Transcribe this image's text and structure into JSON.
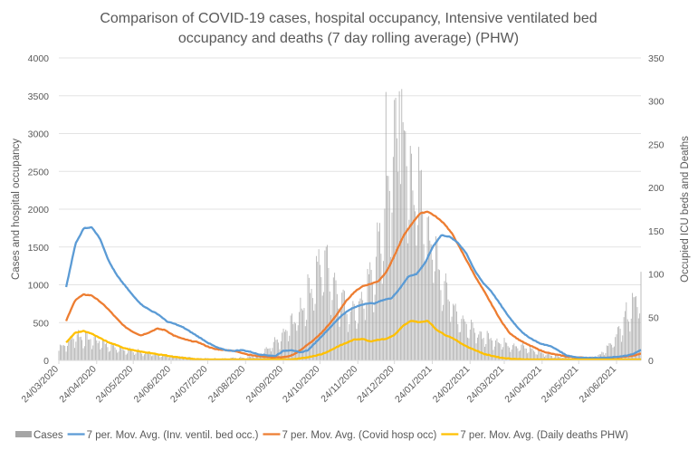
{
  "chart_data": {
    "type": "bar+line",
    "title_lines": [
      "Comparison of COVID-19 cases, hospital occupancy, Intensive ventilated bed",
      "occupancy and deaths  (7 day rolling average) (PHW)"
    ],
    "ylabel_left": "Cases and hospital occupancy",
    "ylabel_right": "Occupied ICU beds and Deaths",
    "ylim_left": [
      0,
      4000
    ],
    "ylim_right": [
      0,
      350
    ],
    "yticks_left": [
      "0",
      "500",
      "1000",
      "1500",
      "2000",
      "2500",
      "3000",
      "3500",
      "4000"
    ],
    "yticks_right": [
      "0",
      "50",
      "100",
      "150",
      "200",
      "250",
      "300",
      "350"
    ],
    "x_start": "2020-03-24",
    "x_end": "2021-07-14",
    "xtick_labels": [
      "24/03/2020",
      "24/04/2020",
      "24/05/2020",
      "24/06/2020",
      "24/07/2020",
      "24/08/2020",
      "24/09/2020",
      "24/10/2020",
      "24/11/2020",
      "24/12/2020",
      "24/01/2021",
      "24/02/2021",
      "24/03/2021",
      "24/04/2021",
      "24/05/2021",
      "24/06/2021"
    ],
    "grid": true,
    "legend_position": "bottom",
    "series": [
      {
        "name": "Cases",
        "kind": "bar",
        "axis": "left",
        "color": "#a5a5a5",
        "weekly_values": [
          170,
          230,
          330,
          290,
          270,
          240,
          190,
          160,
          140,
          120,
          100,
          80,
          70,
          60,
          50,
          40,
          30,
          30,
          25,
          25,
          30,
          35,
          45,
          60,
          110,
          200,
          300,
          450,
          600,
          850,
          1100,
          1350,
          1050,
          800,
          650,
          700,
          900,
          1300,
          1900,
          2600,
          3100,
          2400,
          2200,
          1800,
          1400,
          1000,
          750,
          550,
          420,
          350,
          300,
          260,
          230,
          200,
          180,
          150,
          110,
          80,
          60,
          45,
          35,
          30,
          40,
          60,
          150,
          300,
          550,
          750,
          1000
        ],
        "peak_daily_values": [
          3550,
          3560
        ]
      },
      {
        "name": "7 per. Mov. Avg. (Inv. ventil. bed occ.)",
        "kind": "line",
        "axis": "right",
        "color": "#5b9bd5",
        "weekly_values": [
          45,
          90,
          135,
          153,
          154,
          140,
          115,
          98,
          86,
          74,
          64,
          58,
          53,
          45,
          42,
          38,
          32,
          26,
          20,
          15,
          12,
          11,
          12,
          10,
          7,
          6,
          5,
          11,
          12,
          9,
          12,
          22,
          32,
          42,
          52,
          59,
          63,
          66,
          66,
          70,
          72,
          83,
          97,
          100,
          112,
          132,
          145,
          143,
          136,
          124,
          104,
          90,
          80,
          66,
          52,
          40,
          30,
          24,
          19,
          17,
          12,
          6,
          4,
          3,
          3,
          3,
          3,
          4,
          5,
          7,
          12
        ]
      },
      {
        "name": "7 per. Mov. Avg. (Covid hosp occ)",
        "kind": "line",
        "axis": "left",
        "color": "#ed7d31",
        "weekly_values": [
          260,
          550,
          800,
          870,
          860,
          780,
          680,
          560,
          450,
          380,
          330,
          370,
          420,
          400,
          330,
          290,
          260,
          240,
          190,
          150,
          140,
          130,
          110,
          80,
          60,
          50,
          40,
          40,
          50,
          100,
          180,
          260,
          360,
          480,
          620,
          780,
          900,
          980,
          1010,
          1050,
          1180,
          1400,
          1640,
          1800,
          1940,
          1970,
          1900,
          1810,
          1670,
          1470,
          1270,
          1070,
          890,
          700,
          510,
          360,
          280,
          220,
          170,
          120,
          90,
          70,
          50,
          40,
          35,
          30,
          30,
          35,
          40,
          50,
          60,
          90
        ]
      },
      {
        "name": "7 per. Mov. Avg. (Daily deaths PHW)",
        "kind": "line",
        "axis": "right",
        "color": "#ffc000",
        "weekly_values": [
          12,
          22,
          32,
          34,
          31,
          26,
          21,
          18,
          14,
          12,
          10,
          9,
          7,
          6,
          4,
          3,
          2,
          1,
          1,
          0.5,
          0.5,
          0.5,
          0.5,
          0.5,
          0.5,
          0.5,
          0.5,
          1,
          1,
          1.5,
          3,
          5,
          7,
          11,
          16,
          20,
          24,
          25,
          22,
          24,
          25,
          30,
          40,
          46,
          44,
          46,
          36,
          30,
          26,
          20,
          15,
          11,
          7,
          5,
          3,
          2,
          1.5,
          1,
          0.5,
          0.5,
          0.5,
          0.5,
          0.5,
          0.5,
          0.5,
          0.5,
          0.5,
          0.5,
          0.5,
          0.5,
          0.5,
          0.5
        ]
      }
    ]
  },
  "legend": [
    {
      "label": "Cases",
      "kind": "bar",
      "color": "#a5a5a5"
    },
    {
      "label": "7 per. Mov. Avg. (Inv. ventil. bed occ.)",
      "kind": "line",
      "color": "#5b9bd5"
    },
    {
      "label": "7 per. Mov. Avg. (Covid hosp occ)",
      "kind": "line",
      "color": "#ed7d31"
    },
    {
      "label": "7 per. Mov. Avg. (Daily deaths PHW)",
      "kind": "line",
      "color": "#ffc000"
    }
  ]
}
